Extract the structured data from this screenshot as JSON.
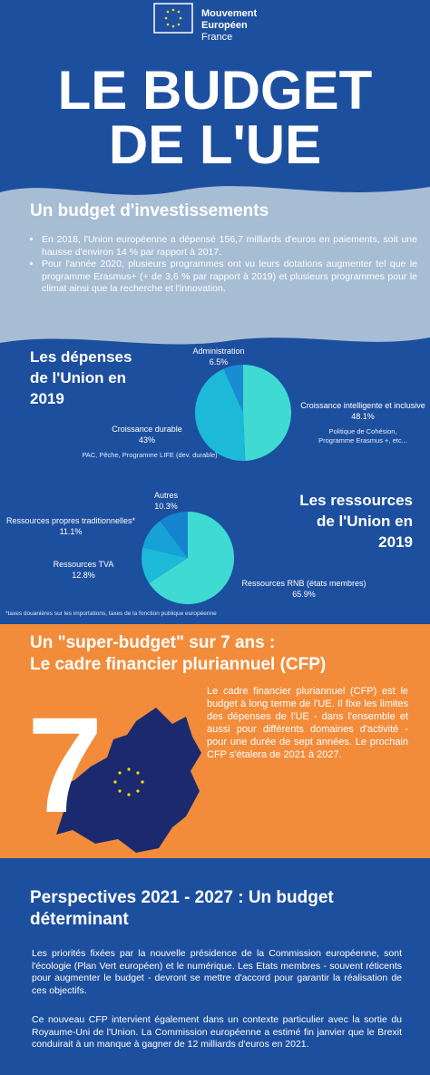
{
  "header": {
    "logo_lines": [
      "Mouvement",
      "Européen",
      "France"
    ],
    "title_lines": [
      "LE BUDGET",
      "DE L'UE"
    ]
  },
  "investments": {
    "heading": "Un budget d'investissements",
    "bullets": [
      "En 2018, l'Union européenne a dépensé 156,7 milliards d'euros en paiements, soit une hausse d'environ 14 % par rapport à 2017.",
      "Pour l'année 2020, plusieurs programmes ont vu leurs dotations augmenter tel que le programme Erasmus+ (+ de 3,6 % par rapport à 2019) et plusieurs programmes pour le climat ainsi que la recherche et l'innovation."
    ]
  },
  "chart_data": [
    {
      "type": "pie",
      "title": "Les dépenses de l'Union en 2019",
      "categories": [
        "Croissance intelligente et inclusive",
        "Croissance durable",
        "Administration"
      ],
      "category_notes": [
        "Politique de Cohésion, Programme Erasmus +, etc...",
        "PAC, Pêche, Programme LIFE (dev. durable)",
        null
      ],
      "values": [
        48.1,
        43,
        6.5
      ],
      "value_labels": [
        "48.1%",
        "43%",
        "6.5%"
      ],
      "colors": [
        "#3fdbd3",
        "#1cbad8",
        "#1a8cd2"
      ]
    },
    {
      "type": "pie",
      "title": "Les ressources de l'Union en 2019",
      "categories": [
        "Ressources RNB (états membres)",
        "Ressources TVA",
        "Ressources propres traditionnelles*",
        "Autres"
      ],
      "values": [
        65.9,
        12.8,
        11.1,
        10.3
      ],
      "value_labels": [
        "65.9%",
        "12.8%",
        "11.1%",
        "10.3%"
      ],
      "colors": [
        "#3fdbd3",
        "#1cbad8",
        "#18a1d7",
        "#1583d0"
      ],
      "footnote": "*taxes douanières sur les importations, taxes de la fonction publique européenne"
    }
  ],
  "cfp": {
    "heading_lines": [
      "Un \"super-budget\" sur 7 ans :",
      "Le cadre financier pluriannuel (CFP)"
    ],
    "number": "7",
    "paragraph": "Le cadre financier pluriannuel (CFP) est le budget à long terme de l'UE. Il fixe les limites des dépenses de l'UE - dans l'ensemble et aussi pour différents domaines d'activité - pour une durée de sept années. Le prochain CFP s'étalera de 2021 à 2027."
  },
  "perspectives": {
    "heading": "Perspectives 2021 - 2027 : Un budget déterminant",
    "paragraphs": [
      "Les priorités fixées par la nouvelle présidence de la Commission européenne, sont l'écologie (Plan Vert européen) et le numérique. Les Etats membres - souvent réticents pour augmenter le budget - devront se mettre d'accord pour garantir la réalisation de ces objectifs.",
      "Ce nouveau CFP intervient également dans un contexte particulier avec la sortie du Royaume-Uni de l'Union. La Commission européenne a estimé fin janvier que le Brexit conduirait à un manque à gagner de 12 milliards d'euros en 2021."
    ]
  }
}
